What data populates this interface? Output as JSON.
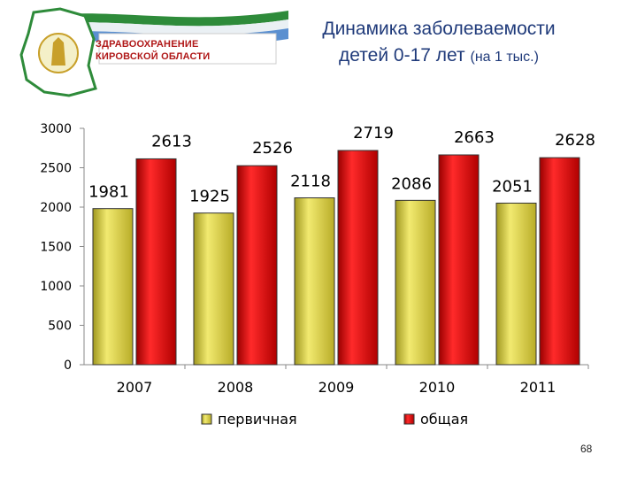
{
  "header": {
    "logo_line1": "ЗДРАВООХРАНЕНИЕ",
    "logo_line2": "КИРОВСКОЙ ОБЛАСТИ",
    "title_line1": "Динамика заболеваемости",
    "title_line2_main": "детей 0-17 лет",
    "title_line2_small": "(на 1 тыс.)"
  },
  "colors": {
    "primary": "#e8dc3a",
    "total": "#e01010",
    "title": "#1f3a7a",
    "logo_text": "#b01818"
  },
  "chart_data": {
    "type": "bar",
    "categories": [
      "2007",
      "2008",
      "2009",
      "2010",
      "2011"
    ],
    "series": [
      {
        "name": "первичная",
        "values": [
          1981,
          1925,
          2118,
          2086,
          2051
        ]
      },
      {
        "name": "общая",
        "values": [
          2613,
          2526,
          2719,
          2663,
          2628
        ]
      }
    ],
    "ylim": [
      0,
      3000
    ],
    "yticks": [
      0,
      500,
      1000,
      1500,
      2000,
      2500,
      3000
    ],
    "grid": false,
    "legend": "bottom"
  },
  "footer": {
    "page_number": "68"
  }
}
